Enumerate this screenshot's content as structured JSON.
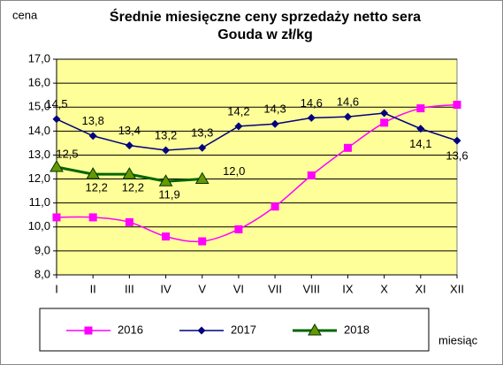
{
  "chart_data": {
    "type": "line",
    "title": [
      "Średnie miesięczne ceny sprzedaży netto sera",
      "Gouda w zł/kg"
    ],
    "y_label": "cena",
    "x_label": "miesiąc",
    "categories": [
      "I",
      "II",
      "III",
      "IV",
      "V",
      "VI",
      "VII",
      "VIII",
      "IX",
      "X",
      "XI",
      "XII"
    ],
    "ylim": [
      8,
      17
    ],
    "yticks": [
      {
        "value": 8,
        "label": "8,0"
      },
      {
        "value": 9,
        "label": "9,0"
      },
      {
        "value": 10,
        "label": "10,0"
      },
      {
        "value": 11,
        "label": "11,0"
      },
      {
        "value": 12,
        "label": "12,0"
      },
      {
        "value": 13,
        "label": "13,0"
      },
      {
        "value": 14,
        "label": "14,0"
      },
      {
        "value": 15,
        "label": "15,0"
      },
      {
        "value": 16,
        "label": "16,0"
      },
      {
        "value": 17,
        "label": "17,0"
      }
    ],
    "grid": true,
    "legend": "bottom",
    "series": [
      {
        "name": "2016",
        "color": "#ff00ff",
        "marker": "square",
        "smooth": true,
        "values": [
          10.4,
          10.4,
          10.2,
          9.6,
          9.4,
          9.9,
          10.85,
          12.15,
          13.3,
          14.35,
          14.95,
          15.1
        ]
      },
      {
        "name": "2017",
        "color": "#000080",
        "marker": "diamond",
        "smooth": false,
        "values": [
          14.5,
          13.8,
          13.4,
          13.2,
          13.3,
          14.2,
          14.3,
          14.55,
          14.6,
          14.75,
          14.1,
          13.6
        ],
        "value_labels": [
          "14,5",
          "13,8",
          "13,4",
          "13,2",
          "13,3",
          "14,2",
          "14,3",
          "14,6",
          "14,6",
          null,
          "14,1",
          "13,6"
        ]
      },
      {
        "name": "2018",
        "color": "#006600",
        "marker": "triangle",
        "smooth": false,
        "values": [
          12.5,
          12.2,
          12.2,
          11.9,
          12.0,
          null,
          null,
          null,
          null,
          null,
          null,
          null
        ],
        "value_labels": [
          "12,5",
          "12,2",
          "12,2",
          "11,9",
          "12,0",
          null,
          null,
          null,
          null,
          null,
          null,
          null
        ]
      }
    ]
  }
}
